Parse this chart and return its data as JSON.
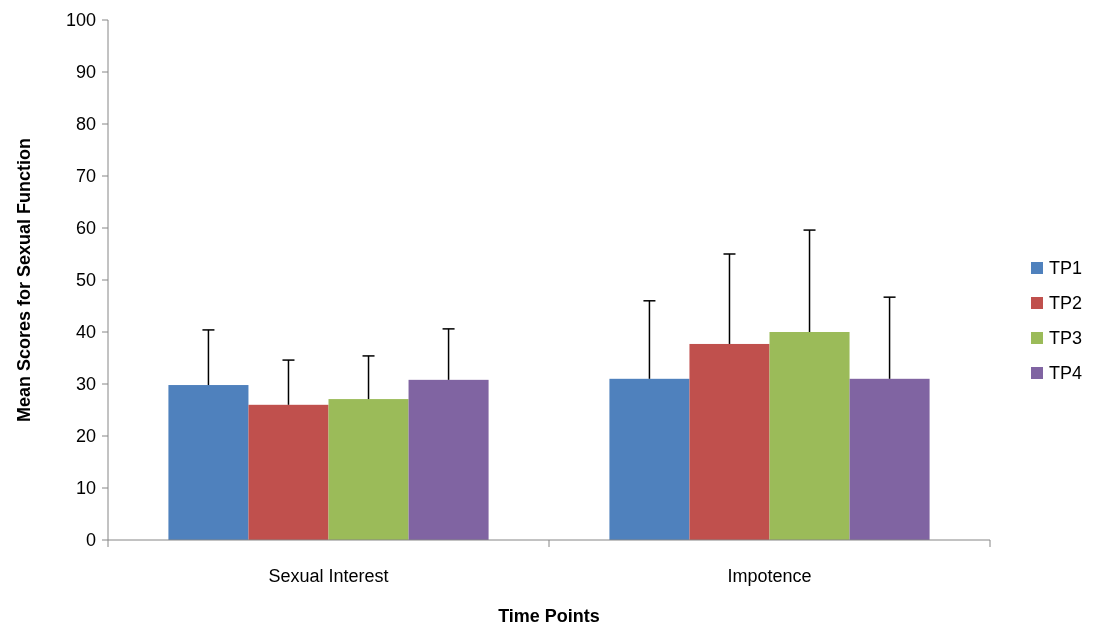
{
  "chart_data": {
    "type": "bar",
    "xlabel": "Time Points",
    "ylabel": "Mean Scores for Sexual Function",
    "categories": [
      "Sexual Interest",
      "Impotence"
    ],
    "series": [
      {
        "name": "TP1",
        "color": "#4f81bd",
        "values": [
          29.8,
          31
        ],
        "errors": [
          [
            29.8,
            40.4
          ],
          [
            31,
            46
          ]
        ]
      },
      {
        "name": "TP2",
        "color": "#c0504d",
        "values": [
          26,
          37.7
        ],
        "errors": [
          [
            26,
            34.6
          ],
          [
            37.7,
            55
          ]
        ]
      },
      {
        "name": "TP3",
        "color": "#9bbb59",
        "values": [
          27.1,
          40
        ],
        "errors": [
          [
            27.1,
            35.4
          ],
          [
            40,
            59.6
          ]
        ]
      },
      {
        "name": "TP4",
        "color": "#8064a2",
        "values": [
          30.8,
          31
        ],
        "errors": [
          [
            30.8,
            40.6
          ],
          [
            31,
            46.7
          ]
        ]
      }
    ],
    "ylim": [
      0,
      100
    ],
    "yticks": [
      0,
      10,
      20,
      30,
      40,
      50,
      60,
      70,
      80,
      90,
      100
    ],
    "grid": false,
    "legend": "right"
  }
}
